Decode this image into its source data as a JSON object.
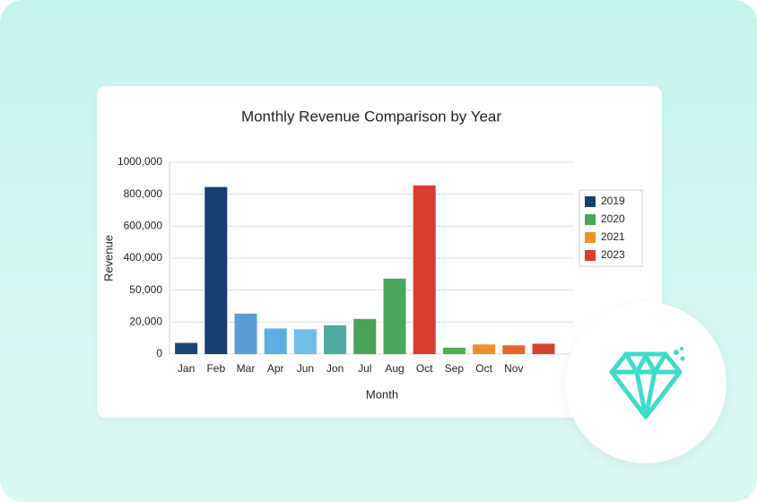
{
  "chart_data": {
    "type": "bar",
    "title": "Monthly Revenue Comparison by Year",
    "x_label": "Month",
    "y_label": "Revenue",
    "categories": [
      "Jan",
      "Feb",
      "Mar",
      "Apr",
      "Jun",
      "Jon",
      "Jul",
      "Aug",
      "Oct",
      "Sep",
      "Oct",
      "Nov",
      null
    ],
    "values": [
      7000,
      845000,
      28000,
      16000,
      15500,
      18000,
      23000,
      176000,
      855000,
      4000,
      6000,
      5500,
      6500
    ],
    "colors": [
      "#1b4677",
      "#183f6e",
      "#5b9bd5",
      "#5aafe2",
      "#6ebde9",
      "#4ea9a1",
      "#4aa25a",
      "#49a65a",
      "#d93c30",
      "#4caf50",
      "#f18d2b",
      "#e8662a",
      "#d9402f"
    ],
    "ylim": [
      0,
      1000000
    ],
    "yticks": [
      0,
      {
        "value": 20000,
        "label": "20,000"
      },
      {
        "value": 50000,
        "label": "50,000"
      },
      {
        "value": 400000,
        "label": "400,000"
      },
      {
        "value": 600000,
        "label": "600,000"
      },
      {
        "value": 800000,
        "label": "800,000"
      },
      {
        "value": 1000000,
        "label": "1000,000"
      }
    ],
    "grid": true,
    "legend": {
      "position": "right",
      "items": [
        {
          "name": "2019",
          "color": "#1a3f6e"
        },
        {
          "name": "2020",
          "color": "#4aa55a"
        },
        {
          "name": "2021",
          "color": "#f0902a"
        },
        {
          "name": "2023",
          "color": "#d93c30"
        }
      ]
    }
  }
}
